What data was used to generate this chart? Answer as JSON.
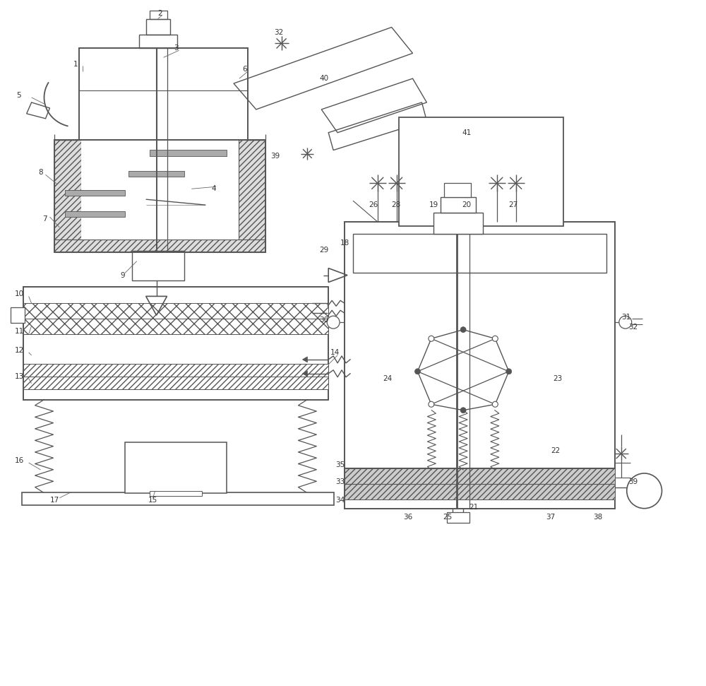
{
  "bg_color": "#ffffff",
  "lc": "#555555",
  "fig_width": 10.0,
  "fig_height": 9.71
}
